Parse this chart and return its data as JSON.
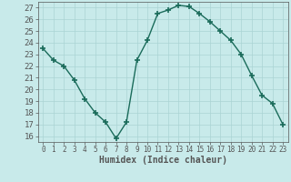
{
  "x": [
    0,
    1,
    2,
    3,
    4,
    5,
    6,
    7,
    8,
    9,
    10,
    11,
    12,
    13,
    14,
    15,
    16,
    17,
    18,
    19,
    20,
    21,
    22,
    23
  ],
  "y": [
    23.5,
    22.5,
    22,
    20.8,
    19.2,
    18,
    17.2,
    15.8,
    17.2,
    22.5,
    24.2,
    26.5,
    26.8,
    27.2,
    27.1,
    26.5,
    25.8,
    25,
    24.2,
    23,
    21.2,
    19.5,
    18.8,
    17
  ],
  "line_color": "#1a6b5a",
  "marker": "+",
  "marker_size": 4,
  "xlabel": "Humidex (Indice chaleur)",
  "xlim": [
    -0.5,
    23.5
  ],
  "ylim": [
    15.5,
    27.5
  ],
  "yticks": [
    16,
    17,
    18,
    19,
    20,
    21,
    22,
    23,
    24,
    25,
    26,
    27
  ],
  "xticks": [
    0,
    1,
    2,
    3,
    4,
    5,
    6,
    7,
    8,
    9,
    10,
    11,
    12,
    13,
    14,
    15,
    16,
    17,
    18,
    19,
    20,
    21,
    22,
    23
  ],
  "background_color": "#c8eaea",
  "grid_color": "#aad4d4",
  "axes_color": "#555555"
}
